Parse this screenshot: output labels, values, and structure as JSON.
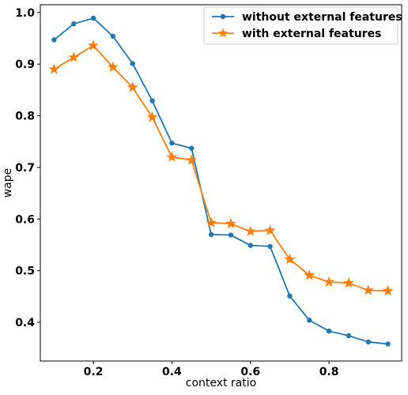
{
  "chart_data": {
    "type": "line",
    "xlabel": "context ratio",
    "ylabel": "wape",
    "xlim": [
      0.065,
      0.985
    ],
    "ylim": [
      0.325,
      1.015
    ],
    "x_ticks": [
      0.2,
      0.4,
      0.6,
      0.8
    ],
    "x_tick_labels": [
      "0.2",
      "0.4",
      "0.6",
      "0.8"
    ],
    "y_ticks": [
      0.4,
      0.5,
      0.6,
      0.7,
      0.8,
      0.9,
      1.0
    ],
    "y_tick_labels": [
      "0.4",
      "0.5",
      "0.6",
      "0.7",
      "0.8",
      "0.9",
      "1.0"
    ],
    "grid": false,
    "legend_position": "top-right",
    "x": [
      0.1,
      0.15,
      0.2,
      0.25,
      0.3,
      0.35,
      0.4,
      0.45,
      0.5,
      0.55,
      0.6,
      0.65,
      0.7,
      0.75,
      0.8,
      0.85,
      0.9,
      0.95
    ],
    "series": [
      {
        "name": "without external features",
        "color": "#1f77b4",
        "marker": "circle",
        "values": [
          0.947,
          0.978,
          0.989,
          0.954,
          0.901,
          0.829,
          0.747,
          0.737,
          0.57,
          0.569,
          0.549,
          0.547,
          0.451,
          0.404,
          0.383,
          0.374,
          0.362,
          0.358
        ]
      },
      {
        "name": "with external features",
        "color": "#ff7f0e",
        "marker": "star",
        "values": [
          0.89,
          0.913,
          0.936,
          0.894,
          0.855,
          0.797,
          0.72,
          0.714,
          0.593,
          0.591,
          0.576,
          0.578,
          0.522,
          0.491,
          0.478,
          0.476,
          0.462,
          0.461
        ]
      }
    ]
  }
}
